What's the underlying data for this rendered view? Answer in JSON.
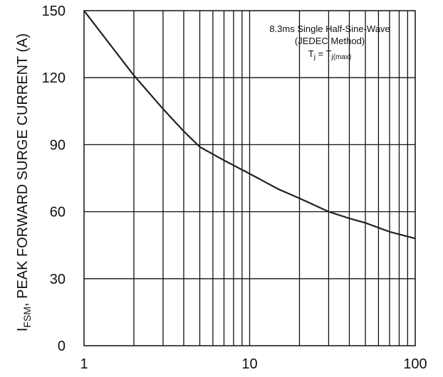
{
  "chart_data": {
    "type": "line",
    "title": "",
    "xlabel": "",
    "ylabel": {
      "main": "I",
      "sub": "FSM",
      "rest": ", PEAK FORWARD SURGE CURRENT (A)"
    },
    "x_scale": "log",
    "xlim": [
      1,
      100
    ],
    "ylim": [
      0,
      150
    ],
    "x_ticks": [
      1,
      10,
      100
    ],
    "x_tick_labels": [
      "1",
      "10",
      "100"
    ],
    "y_ticks": [
      0,
      30,
      60,
      90,
      120,
      150
    ],
    "y_tick_labels": [
      "0",
      "30",
      "60",
      "90",
      "120",
      "150"
    ],
    "grid": true,
    "annotation": {
      "line1": "8.3ms Single Half-Sine-Wave",
      "line2": "(JEDEC Method)",
      "line3_main_left": "T",
      "line3_sub_left": "j",
      "line3_equals": " = T",
      "line3_sub_right": "j(max)",
      "placement": "top-right"
    },
    "series": [
      {
        "x": [
          1,
          1.5,
          2,
          3,
          4,
          5,
          7,
          10,
          15,
          20,
          30,
          40,
          50,
          70,
          100
        ],
        "values": [
          150,
          133,
          121,
          106,
          96,
          89,
          83,
          77,
          70,
          66,
          60,
          57,
          55,
          51,
          48
        ]
      }
    ],
    "colors": {
      "line": "#222222",
      "grid": "#111111",
      "axes": "#111111"
    }
  }
}
